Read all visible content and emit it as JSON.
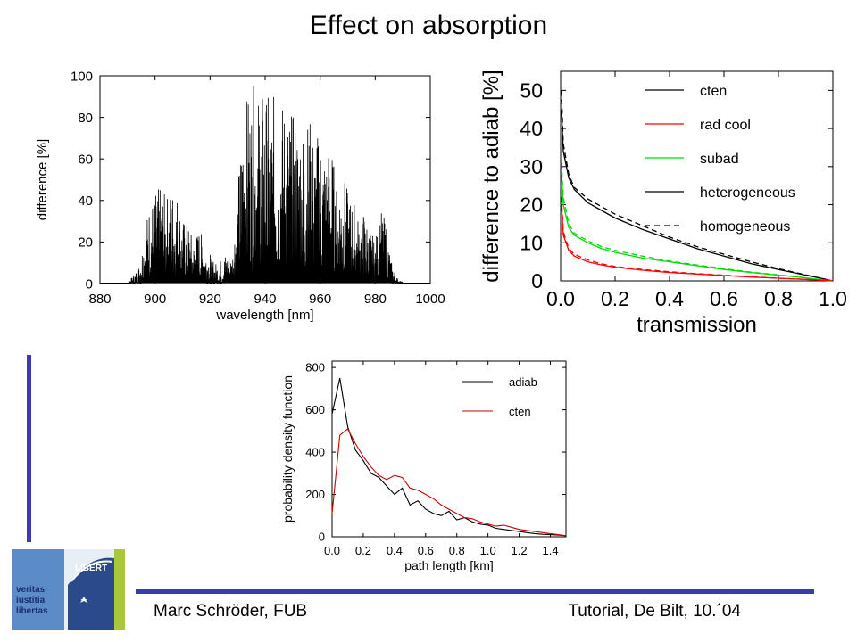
{
  "slide": {
    "title": "Effect on absorption",
    "footer_left": "Marc Schröder, FUB",
    "footer_right": "Tutorial, De Bilt, 10.´04",
    "logo": {
      "lines": [
        "veritas",
        "iustitia",
        "libertas"
      ],
      "seal_text": "LIBERT"
    },
    "colors": {
      "accent_bar": "#3a3ab8",
      "logo_blue": "#5b8cc8",
      "logo_green": "#a6c83a"
    }
  },
  "chart_data": [
    {
      "type": "line",
      "xlabel": "wavelength [nm]",
      "ylabel": "difference [%]",
      "xlim": [
        880,
        1000
      ],
      "ylim": [
        0,
        100
      ],
      "xticks": [
        880,
        900,
        920,
        940,
        960,
        980,
        1000
      ],
      "yticks": [
        0,
        20,
        40,
        60,
        80,
        100
      ],
      "note": "dense spectral line series, envelope estimated",
      "series": [
        {
          "color": "#000000",
          "envelope_x": [
            880,
            890,
            894,
            896,
            898,
            900,
            902,
            904,
            906,
            908,
            910,
            912,
            914,
            916,
            918,
            920,
            922,
            924,
            926,
            928,
            930,
            932,
            934,
            936,
            938,
            940,
            942,
            944,
            946,
            948,
            950,
            952,
            954,
            956,
            958,
            960,
            962,
            964,
            966,
            968,
            970,
            972,
            974,
            976,
            978,
            980,
            982,
            984,
            986,
            988,
            990,
            1000
          ],
          "envelope_y": [
            0,
            0,
            8,
            25,
            38,
            42,
            45,
            40,
            46,
            44,
            30,
            28,
            20,
            26,
            20,
            15,
            10,
            12,
            16,
            14,
            45,
            78,
            90,
            91,
            88,
            90,
            85,
            88,
            86,
            84,
            78,
            80,
            75,
            78,
            68,
            72,
            64,
            66,
            45,
            55,
            42,
            40,
            30,
            35,
            25,
            20,
            34,
            28,
            10,
            3,
            0,
            0
          ]
        }
      ]
    },
    {
      "type": "line",
      "xlabel": "transmission",
      "ylabel": "difference to adiab [%]",
      "xlim": [
        0,
        1
      ],
      "ylim": [
        0,
        55
      ],
      "xticks": [
        0.0,
        0.2,
        0.4,
        0.6,
        0.8,
        1.0
      ],
      "yticks": [
        0,
        10,
        20,
        30,
        40,
        50
      ],
      "legend_entries": [
        {
          "label": "cten",
          "color": "#000000",
          "style": "solid"
        },
        {
          "label": "rad cool",
          "color": "#ff0000",
          "style": "solid"
        },
        {
          "label": "subad",
          "color": "#00dd00",
          "style": "solid"
        },
        {
          "label": "heterogeneous",
          "color": "#000000",
          "style": "solid"
        },
        {
          "label": "homogeneous",
          "color": "#000000",
          "style": "dashed"
        }
      ],
      "legend_position": "top-right",
      "x": [
        0.003,
        0.01,
        0.03,
        0.05,
        0.1,
        0.15,
        0.2,
        0.3,
        0.4,
        0.5,
        0.6,
        0.7,
        0.8,
        0.9,
        0.95,
        1.0
      ],
      "series": [
        {
          "label": "cten",
          "style": "solid",
          "color": "#000000",
          "values": [
            45,
            34,
            27,
            24,
            20.5,
            18.5,
            16.5,
            13.5,
            11,
            8.5,
            6.5,
            4.5,
            3,
            1.5,
            0.8,
            0
          ]
        },
        {
          "label": "cten",
          "style": "dashed",
          "color": "#000000",
          "values": [
            50,
            36,
            28,
            24.5,
            21.5,
            19.5,
            17.5,
            14.5,
            11.5,
            9,
            7,
            5,
            3.2,
            1.6,
            0.8,
            0
          ]
        },
        {
          "label": "subad",
          "style": "solid",
          "color": "#00dd00",
          "values": [
            28,
            20,
            14,
            12,
            10,
            8.5,
            7.5,
            6,
            5,
            4,
            3,
            2.2,
            1.5,
            0.8,
            0.4,
            0
          ]
        },
        {
          "label": "subad",
          "style": "dashed",
          "color": "#00dd00",
          "values": [
            31,
            22,
            15,
            12.5,
            10.5,
            9,
            8,
            6.5,
            5.2,
            4.2,
            3.2,
            2.3,
            1.6,
            0.8,
            0.4,
            0
          ]
        },
        {
          "label": "rad cool",
          "style": "solid",
          "color": "#ff0000",
          "values": [
            20,
            12,
            8,
            6.5,
            5,
            4.2,
            3.6,
            2.8,
            2.2,
            1.8,
            1.4,
            1,
            0.7,
            0.4,
            0.2,
            0
          ]
        },
        {
          "label": "rad cool",
          "style": "dashed",
          "color": "#ff0000",
          "values": [
            22,
            13,
            8.5,
            7,
            5.5,
            4.5,
            3.8,
            3,
            2.4,
            1.9,
            1.5,
            1.1,
            0.7,
            0.4,
            0.2,
            0
          ]
        }
      ]
    },
    {
      "type": "line",
      "xlabel": "path length [km]",
      "ylabel": "probability density function",
      "xlim": [
        0,
        1.5
      ],
      "ylim": [
        0,
        830
      ],
      "xticks": [
        0.0,
        0.2,
        0.4,
        0.6,
        0.8,
        1.0,
        1.2,
        1.4
      ],
      "yticks": [
        0,
        200,
        400,
        600,
        800
      ],
      "legend_position": "top-right",
      "x": [
        0.0,
        0.05,
        0.1,
        0.15,
        0.2,
        0.25,
        0.3,
        0.35,
        0.4,
        0.45,
        0.5,
        0.55,
        0.6,
        0.65,
        0.7,
        0.75,
        0.8,
        0.85,
        0.9,
        0.95,
        1.0,
        1.05,
        1.1,
        1.15,
        1.2,
        1.25,
        1.3,
        1.35,
        1.4,
        1.45,
        1.5
      ],
      "series": [
        {
          "name": "adiab",
          "color": "#000000",
          "values": [
            580,
            750,
            520,
            410,
            360,
            300,
            280,
            240,
            200,
            230,
            150,
            170,
            130,
            110,
            100,
            120,
            80,
            90,
            70,
            60,
            55,
            40,
            35,
            30,
            25,
            20,
            15,
            12,
            10,
            8,
            5
          ]
        },
        {
          "name": "cten",
          "color": "#cc0000",
          "values": [
            110,
            480,
            510,
            440,
            380,
            330,
            290,
            270,
            290,
            280,
            230,
            220,
            200,
            180,
            150,
            130,
            110,
            90,
            85,
            70,
            60,
            50,
            55,
            45,
            35,
            30,
            25,
            20,
            15,
            10,
            5
          ]
        }
      ]
    }
  ]
}
